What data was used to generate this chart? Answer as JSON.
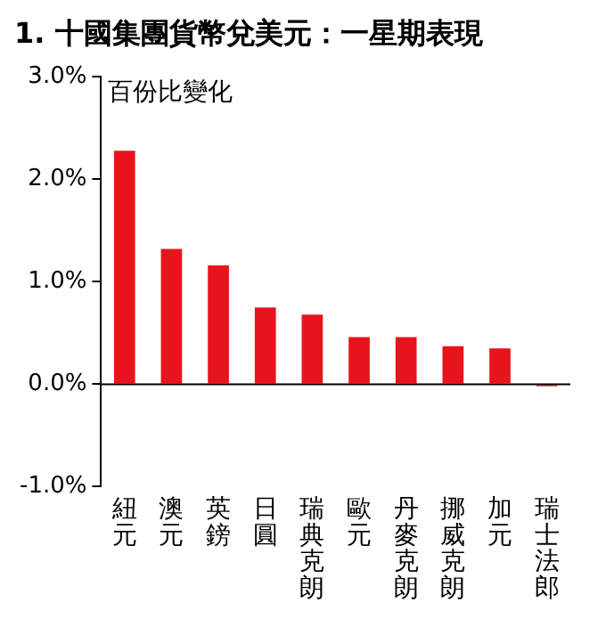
{
  "chart_data": {
    "type": "bar",
    "title": "1. 十國集團貨幣兌美元：一星期表現",
    "ylabel": "百份比變化",
    "categories": [
      "紐元",
      "澳元",
      "英鎊",
      "日圓",
      "瑞典克朗",
      "歐元",
      "丹麥克朗",
      "挪威克朗",
      "加元",
      "瑞士法郎"
    ],
    "values": [
      2.28,
      1.32,
      1.16,
      0.75,
      0.68,
      0.46,
      0.46,
      0.37,
      0.35,
      -0.02
    ],
    "color": "#e8141c",
    "ylim": [
      -1,
      3
    ],
    "yticks": [
      {
        "value": -1,
        "label": "-1.0%"
      },
      {
        "value": 0,
        "label": "0.0%"
      },
      {
        "value": 1,
        "label": "1.0%"
      },
      {
        "value": 2,
        "label": "2.0%"
      },
      {
        "value": 3,
        "label": "3.0%"
      }
    ],
    "ref_lines": [
      {
        "axis": "y",
        "value": 0,
        "color": "#000000"
      }
    ],
    "grid": false,
    "legend": false
  }
}
